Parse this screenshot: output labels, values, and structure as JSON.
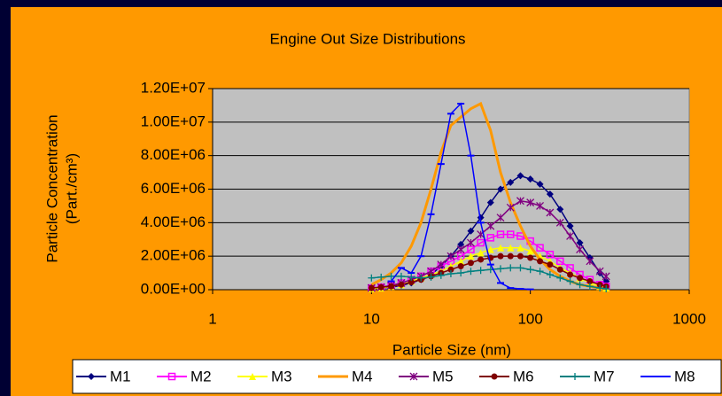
{
  "chart_data": {
    "type": "line",
    "title": "Engine Out Size Distributions",
    "xlabel": "Particle Size (nm)",
    "ylabel": [
      "Particle Concentration",
      "(Part./cm³)"
    ],
    "xscale": "log",
    "xlim": [
      1,
      1000
    ],
    "xticks": [
      1,
      10,
      100,
      1000
    ],
    "ylim": [
      0,
      12000000
    ],
    "yticks": [
      {
        "value": 0,
        "label": "0.00E+00"
      },
      {
        "value": 2000000,
        "label": "2.00E+06"
      },
      {
        "value": 4000000,
        "label": "4.00E+06"
      },
      {
        "value": 6000000,
        "label": "6.00E+06"
      },
      {
        "value": 8000000,
        "label": "8.00E+06"
      },
      {
        "value": 10000000,
        "label": "1.00E+07"
      },
      {
        "value": 12000000,
        "label": "1.20E+07"
      }
    ],
    "grid": true,
    "legend": "bottom",
    "x": [
      10,
      11.5,
      13.3,
      15.4,
      17.8,
      20.5,
      23.7,
      27.4,
      31.6,
      36.5,
      42.2,
      48.7,
      56.2,
      64.9,
      75,
      86.6,
      100,
      115,
      133,
      154,
      178,
      205,
      237,
      274,
      300
    ],
    "series": [
      {
        "name": "M1",
        "color": "#000080",
        "marker": "diamond",
        "values": [
          50000,
          100000,
          150000,
          250000,
          400000,
          600000,
          900000,
          1400000,
          2000000,
          2700000,
          3500000,
          4300000,
          5200000,
          6000000,
          6400000,
          6800000,
          6600000,
          6300000,
          5700000,
          4800000,
          3800000,
          2800000,
          1900000,
          1000000,
          500000
        ]
      },
      {
        "name": "M2",
        "color": "#FF00FF",
        "marker": "square",
        "values": [
          100000,
          150000,
          250000,
          400000,
          600000,
          800000,
          1100000,
          1400000,
          1700000,
          2000000,
          2400000,
          2800000,
          3100000,
          3300000,
          3300000,
          3200000,
          2900000,
          2500000,
          2100000,
          1700000,
          1300000,
          900000,
          600000,
          300000,
          200000
        ]
      },
      {
        "name": "M3",
        "color": "#FFFF00",
        "marker": "triangle",
        "values": [
          50000,
          100000,
          200000,
          300000,
          500000,
          700000,
          900000,
          1100000,
          1400000,
          1700000,
          2000000,
          2200000,
          2400000,
          2500000,
          2500000,
          2500000,
          2300000,
          2000000,
          1700000,
          1300000,
          1000000,
          700000,
          400000,
          200000,
          100000
        ]
      },
      {
        "name": "M4",
        "color": "#FF9900",
        "marker": "none",
        "values": [
          300000,
          600000,
          1000000,
          1600000,
          2600000,
          4000000,
          6000000,
          8200000,
          9800000,
          10300000,
          10800000,
          11100000,
          9500000,
          7000000,
          5200000,
          3800000,
          2600000,
          1800000,
          1200000,
          800000,
          500000,
          300000,
          200000,
          100000,
          50000
        ]
      },
      {
        "name": "M5",
        "color": "#800080",
        "marker": "star",
        "values": [
          100000,
          150000,
          250000,
          400000,
          600000,
          800000,
          1100000,
          1500000,
          2000000,
          2400000,
          2800000,
          3300000,
          3800000,
          4300000,
          4900000,
          5300000,
          5200000,
          5000000,
          4600000,
          4000000,
          3200000,
          2400000,
          1700000,
          1100000,
          800000
        ]
      },
      {
        "name": "M6",
        "color": "#800000",
        "marker": "circle",
        "values": [
          100000,
          150000,
          200000,
          300000,
          450000,
          600000,
          800000,
          1000000,
          1200000,
          1400000,
          1600000,
          1800000,
          1900000,
          2000000,
          2000000,
          2000000,
          1900000,
          1700000,
          1500000,
          1200000,
          900000,
          700000,
          500000,
          300000,
          200000
        ]
      },
      {
        "name": "M7",
        "color": "#008080",
        "marker": "plus",
        "values": [
          700000,
          750000,
          800000,
          800000,
          750000,
          700000,
          750000,
          850000,
          950000,
          1000000,
          1100000,
          1150000,
          1200000,
          1250000,
          1300000,
          1300000,
          1200000,
          1100000,
          900000,
          700000,
          500000,
          300000,
          200000,
          100000,
          50000
        ]
      },
      {
        "name": "M8",
        "color": "#0000FF",
        "marker": "dash",
        "values": [
          null,
          null,
          500000,
          1300000,
          1000000,
          2000000,
          4500000,
          7500000,
          10500000,
          11100000,
          8000000,
          4000000,
          1500000,
          400000,
          100000,
          50000,
          20000,
          null,
          null,
          null,
          null,
          null,
          null,
          null,
          null
        ]
      }
    ]
  }
}
